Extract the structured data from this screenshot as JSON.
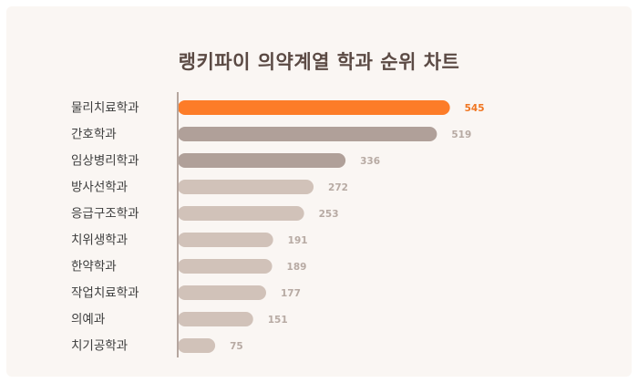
{
  "chart_data": {
    "type": "bar",
    "orientation": "horizontal",
    "title": "랭키파이 의약계열 학과 순위 차트",
    "categories": [
      "물리치료학과",
      "간호학과",
      "임상병리학과",
      "방사선학과",
      "응급구조학과",
      "치위생학과",
      "한약학과",
      "작업치료학과",
      "의예과",
      "치기공학과"
    ],
    "values": [
      545,
      519,
      336,
      272,
      253,
      191,
      189,
      177,
      151,
      75
    ],
    "xlim": [
      0,
      600
    ],
    "grid": false,
    "legend": "none",
    "colors": {
      "highlight": "#fd7c28",
      "dark": "#b0a099",
      "light": "#d1c2b9",
      "highlight_label": "#f07622",
      "label": "#b7aaa3",
      "axis": "#b5a69f"
    }
  }
}
